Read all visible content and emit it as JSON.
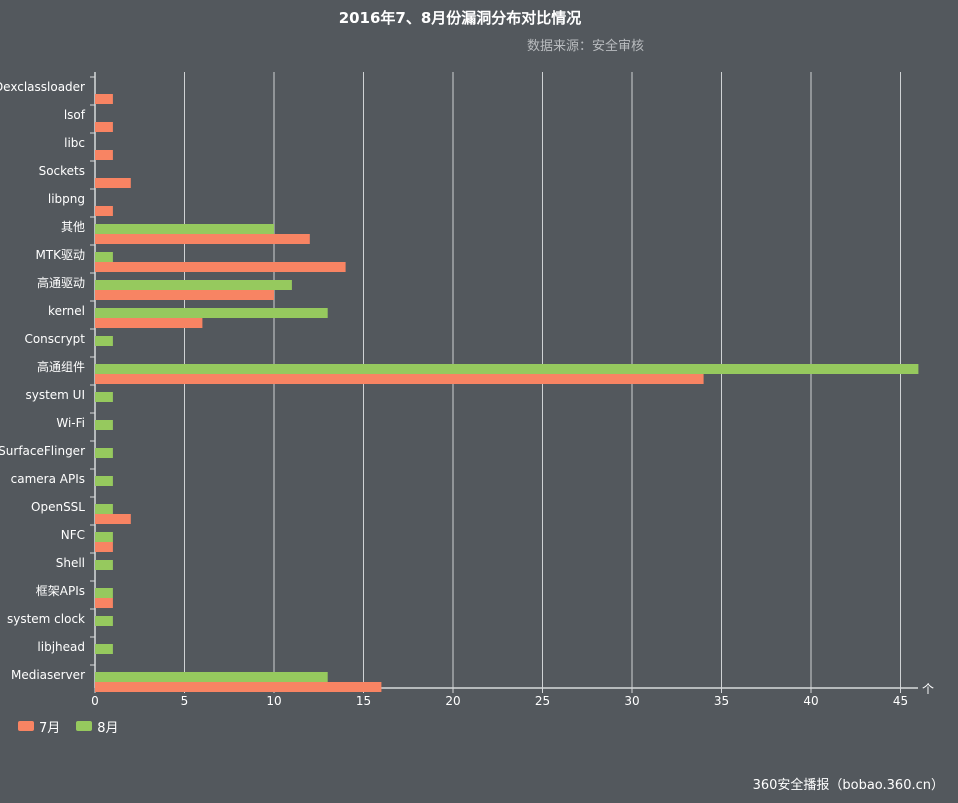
{
  "colors": {
    "background": "#53585d",
    "grid": "#cfd2d4",
    "axis": "#d8dadc",
    "series_7": "#f88463",
    "series_8": "#96c95e"
  },
  "chart_data": {
    "type": "bar",
    "orientation": "horizontal",
    "title": "2016年7、8月份漏洞分布对比情况",
    "subtitle": "数据来源：安全审核",
    "categories": [
      "Dexclassloader",
      "lsof",
      "libc",
      "Sockets",
      "libpng",
      "其他",
      "MTK驱动",
      "高通驱动",
      "kernel",
      "Conscrypt",
      "高通组件",
      "system UI",
      "Wi-Fi",
      "SurfaceFlinger",
      "camera APIs",
      "OpenSSL",
      "NFC",
      "Shell",
      "框架APIs",
      "system clock",
      "libjhead",
      "Mediaserver"
    ],
    "series": [
      {
        "name": "7月",
        "values": [
          1,
          1,
          1,
          2,
          1,
          12,
          14,
          10,
          6,
          0,
          34,
          0,
          0,
          0,
          0,
          2,
          1,
          0,
          1,
          0,
          0,
          16
        ]
      },
      {
        "name": "8月",
        "values": [
          0,
          0,
          0,
          0,
          0,
          10,
          1,
          11,
          13,
          1,
          46,
          1,
          1,
          1,
          1,
          1,
          1,
          1,
          1,
          1,
          1,
          13
        ]
      }
    ],
    "x_ticks": [
      "0",
      "5",
      "10",
      "15",
      "20",
      "25",
      "30",
      "35",
      "40",
      "45"
    ],
    "xlim": [
      0,
      46
    ],
    "grid": true,
    "legend_position": "bottom-left",
    "axis_arrow": "个"
  },
  "footer": "360安全播报（bobao.360.cn）"
}
